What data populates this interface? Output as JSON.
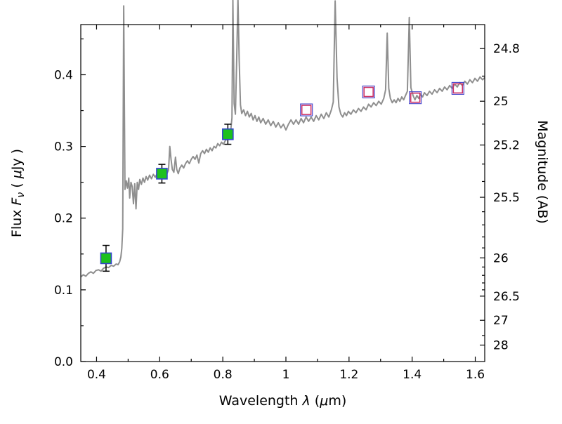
{
  "figure": {
    "description": "Spectral energy distribution: model spectrum with observed and model photometry",
    "background": "#ffffff"
  },
  "chart_data": {
    "type": "line",
    "title": "",
    "xlabel_parts": [
      {
        "t": "Wavelength  ",
        "i": false
      },
      {
        "t": "λ",
        "i": true
      },
      {
        "t": "  (",
        "i": false
      },
      {
        "t": "μ",
        "i": true
      },
      {
        "t": "m)",
        "i": false
      }
    ],
    "ylabel_left_parts": [
      {
        "t": "Flux  ",
        "i": false
      },
      {
        "t": "F",
        "i": true
      },
      {
        "t": "ν",
        "i": true,
        "sub": true
      },
      {
        "t": "  ( ",
        "i": false
      },
      {
        "t": "μ",
        "i": true
      },
      {
        "t": "Jy )",
        "i": false
      }
    ],
    "ylabel_right": "Magnitude (AB)",
    "xlim": [
      0.35,
      1.63
    ],
    "ylim": [
      0.0,
      0.47
    ],
    "grid": false,
    "x_major_ticks": [
      {
        "v": 0.4,
        "label": "0.4"
      },
      {
        "v": 0.6,
        "label": "0.6"
      },
      {
        "v": 0.8,
        "label": "0.8"
      },
      {
        "v": 1.0,
        "label": "1"
      },
      {
        "v": 1.2,
        "label": "1.2"
      },
      {
        "v": 1.4,
        "label": "1.4"
      },
      {
        "v": 1.6,
        "label": "1.6"
      }
    ],
    "x_minor_ticks": [
      0.5,
      0.7,
      0.9,
      1.1,
      1.3,
      1.5
    ],
    "y_major_ticks": [
      {
        "v": 0.0,
        "label": "0.0"
      },
      {
        "v": 0.1,
        "label": "0.1"
      },
      {
        "v": 0.2,
        "label": "0.2"
      },
      {
        "v": 0.3,
        "label": "0.3"
      },
      {
        "v": 0.4,
        "label": "0.4"
      }
    ],
    "y_minor_ticks": [
      0.05,
      0.15,
      0.25,
      0.35,
      0.45
    ],
    "right_axis": {
      "zero_point": 23.9,
      "major_ticks": [
        {
          "m": 24.8,
          "label": "24.8"
        },
        {
          "m": 25.0,
          "label": "25"
        },
        {
          "m": 25.2,
          "label": "25.2"
        },
        {
          "m": 25.5,
          "label": "25.5"
        },
        {
          "m": 26.0,
          "label": "26"
        },
        {
          "m": 26.5,
          "label": "26.5"
        },
        {
          "m": 27.0,
          "label": "27"
        },
        {
          "m": 28.0,
          "label": "28"
        }
      ],
      "minor_ticks": [
        24.9,
        25.1,
        25.3,
        25.4,
        25.6,
        25.7,
        25.8,
        25.9,
        26.1,
        26.2,
        26.3,
        26.4,
        27.5
      ]
    },
    "colors": {
      "spectrum": "#8f8f8f",
      "observed_fill": "#1dc11d",
      "observed_edge": "#3344cc",
      "model_point_inner": "#cc3366",
      "model_point_outer": "#4444cc",
      "errorbar": "#000000",
      "frame": "#000000"
    },
    "series": [
      {
        "name": "model-spectrum",
        "kind": "line",
        "linewidth": 2,
        "xy": [
          [
            0.35,
            0.118
          ],
          [
            0.358,
            0.121
          ],
          [
            0.366,
            0.119
          ],
          [
            0.374,
            0.123
          ],
          [
            0.382,
            0.125
          ],
          [
            0.39,
            0.123
          ],
          [
            0.398,
            0.127
          ],
          [
            0.406,
            0.128
          ],
          [
            0.414,
            0.126
          ],
          [
            0.422,
            0.13
          ],
          [
            0.43,
            0.132
          ],
          [
            0.438,
            0.131
          ],
          [
            0.446,
            0.134
          ],
          [
            0.454,
            0.133
          ],
          [
            0.462,
            0.136
          ],
          [
            0.468,
            0.135
          ],
          [
            0.473,
            0.139
          ],
          [
            0.477,
            0.146
          ],
          [
            0.48,
            0.158
          ],
          [
            0.483,
            0.185
          ],
          [
            0.486,
            0.496
          ],
          [
            0.49,
            0.24
          ],
          [
            0.494,
            0.252
          ],
          [
            0.498,
            0.242
          ],
          [
            0.502,
            0.256
          ],
          [
            0.505,
            0.228
          ],
          [
            0.509,
            0.25
          ],
          [
            0.513,
            0.244
          ],
          [
            0.517,
            0.22
          ],
          [
            0.521,
            0.248
          ],
          [
            0.525,
            0.213
          ],
          [
            0.529,
            0.25
          ],
          [
            0.533,
            0.24
          ],
          [
            0.537,
            0.254
          ],
          [
            0.542,
            0.247
          ],
          [
            0.547,
            0.256
          ],
          [
            0.552,
            0.25
          ],
          [
            0.557,
            0.258
          ],
          [
            0.562,
            0.253
          ],
          [
            0.568,
            0.26
          ],
          [
            0.574,
            0.255
          ],
          [
            0.58,
            0.261
          ],
          [
            0.586,
            0.257
          ],
          [
            0.592,
            0.262
          ],
          [
            0.598,
            0.259
          ],
          [
            0.604,
            0.263
          ],
          [
            0.61,
            0.26
          ],
          [
            0.616,
            0.264
          ],
          [
            0.622,
            0.261
          ],
          [
            0.628,
            0.267
          ],
          [
            0.632,
            0.3
          ],
          [
            0.636,
            0.282
          ],
          [
            0.64,
            0.268
          ],
          [
            0.645,
            0.264
          ],
          [
            0.65,
            0.285
          ],
          [
            0.654,
            0.268
          ],
          [
            0.659,
            0.262
          ],
          [
            0.664,
            0.27
          ],
          [
            0.67,
            0.274
          ],
          [
            0.676,
            0.27
          ],
          [
            0.682,
            0.276
          ],
          [
            0.688,
            0.28
          ],
          [
            0.694,
            0.276
          ],
          [
            0.7,
            0.282
          ],
          [
            0.706,
            0.286
          ],
          [
            0.712,
            0.282
          ],
          [
            0.718,
            0.288
          ],
          [
            0.724,
            0.277
          ],
          [
            0.73,
            0.29
          ],
          [
            0.736,
            0.294
          ],
          [
            0.742,
            0.29
          ],
          [
            0.748,
            0.296
          ],
          [
            0.754,
            0.292
          ],
          [
            0.76,
            0.298
          ],
          [
            0.766,
            0.294
          ],
          [
            0.772,
            0.3
          ],
          [
            0.778,
            0.298
          ],
          [
            0.784,
            0.304
          ],
          [
            0.79,
            0.301
          ],
          [
            0.796,
            0.306
          ],
          [
            0.802,
            0.303
          ],
          [
            0.808,
            0.308
          ],
          [
            0.814,
            0.311
          ],
          [
            0.82,
            0.315
          ],
          [
            0.825,
            0.322
          ],
          [
            0.829,
            0.34
          ],
          [
            0.832,
            0.505
          ],
          [
            0.836,
            0.36
          ],
          [
            0.84,
            0.345
          ],
          [
            0.844,
            0.42
          ],
          [
            0.848,
            0.508
          ],
          [
            0.852,
            0.42
          ],
          [
            0.856,
            0.358
          ],
          [
            0.86,
            0.346
          ],
          [
            0.866,
            0.351
          ],
          [
            0.872,
            0.343
          ],
          [
            0.878,
            0.349
          ],
          [
            0.884,
            0.341
          ],
          [
            0.89,
            0.346
          ],
          [
            0.896,
            0.337
          ],
          [
            0.902,
            0.343
          ],
          [
            0.908,
            0.335
          ],
          [
            0.914,
            0.341
          ],
          [
            0.92,
            0.333
          ],
          [
            0.928,
            0.339
          ],
          [
            0.936,
            0.331
          ],
          [
            0.944,
            0.337
          ],
          [
            0.952,
            0.329
          ],
          [
            0.96,
            0.335
          ],
          [
            0.968,
            0.327
          ],
          [
            0.976,
            0.333
          ],
          [
            0.984,
            0.326
          ],
          [
            0.992,
            0.331
          ],
          [
            1.0,
            0.323
          ],
          [
            1.008,
            0.331
          ],
          [
            1.016,
            0.337
          ],
          [
            1.024,
            0.331
          ],
          [
            1.032,
            0.337
          ],
          [
            1.04,
            0.331
          ],
          [
            1.048,
            0.339
          ],
          [
            1.056,
            0.333
          ],
          [
            1.064,
            0.341
          ],
          [
            1.072,
            0.335
          ],
          [
            1.08,
            0.341
          ],
          [
            1.088,
            0.335
          ],
          [
            1.096,
            0.343
          ],
          [
            1.104,
            0.337
          ],
          [
            1.112,
            0.345
          ],
          [
            1.12,
            0.339
          ],
          [
            1.128,
            0.347
          ],
          [
            1.136,
            0.341
          ],
          [
            1.144,
            0.351
          ],
          [
            1.15,
            0.362
          ],
          [
            1.156,
            0.503
          ],
          [
            1.162,
            0.395
          ],
          [
            1.168,
            0.355
          ],
          [
            1.174,
            0.345
          ],
          [
            1.18,
            0.341
          ],
          [
            1.186,
            0.347
          ],
          [
            1.192,
            0.343
          ],
          [
            1.198,
            0.349
          ],
          [
            1.206,
            0.345
          ],
          [
            1.214,
            0.351
          ],
          [
            1.222,
            0.347
          ],
          [
            1.23,
            0.353
          ],
          [
            1.238,
            0.349
          ],
          [
            1.246,
            0.355
          ],
          [
            1.254,
            0.351
          ],
          [
            1.262,
            0.359
          ],
          [
            1.27,
            0.355
          ],
          [
            1.278,
            0.361
          ],
          [
            1.286,
            0.357
          ],
          [
            1.294,
            0.363
          ],
          [
            1.302,
            0.359
          ],
          [
            1.31,
            0.367
          ],
          [
            1.316,
            0.379
          ],
          [
            1.321,
            0.458
          ],
          [
            1.326,
            0.381
          ],
          [
            1.331,
            0.367
          ],
          [
            1.337,
            0.361
          ],
          [
            1.343,
            0.365
          ],
          [
            1.349,
            0.361
          ],
          [
            1.355,
            0.367
          ],
          [
            1.361,
            0.363
          ],
          [
            1.367,
            0.369
          ],
          [
            1.373,
            0.365
          ],
          [
            1.379,
            0.371
          ],
          [
            1.385,
            0.377
          ],
          [
            1.391,
            0.48
          ],
          [
            1.396,
            0.382
          ],
          [
            1.403,
            0.371
          ],
          [
            1.409,
            0.365
          ],
          [
            1.415,
            0.371
          ],
          [
            1.421,
            0.367
          ],
          [
            1.427,
            0.373
          ],
          [
            1.433,
            0.369
          ],
          [
            1.439,
            0.375
          ],
          [
            1.447,
            0.371
          ],
          [
            1.455,
            0.377
          ],
          [
            1.463,
            0.373
          ],
          [
            1.471,
            0.379
          ],
          [
            1.479,
            0.375
          ],
          [
            1.487,
            0.381
          ],
          [
            1.495,
            0.377
          ],
          [
            1.503,
            0.383
          ],
          [
            1.511,
            0.379
          ],
          [
            1.519,
            0.385
          ],
          [
            1.527,
            0.381
          ],
          [
            1.535,
            0.387
          ],
          [
            1.543,
            0.383
          ],
          [
            1.551,
            0.389
          ],
          [
            1.559,
            0.385
          ],
          [
            1.567,
            0.391
          ],
          [
            1.575,
            0.387
          ],
          [
            1.583,
            0.393
          ],
          [
            1.591,
            0.389
          ],
          [
            1.599,
            0.395
          ],
          [
            1.607,
            0.391
          ],
          [
            1.615,
            0.397
          ],
          [
            1.623,
            0.393
          ],
          [
            1.63,
            0.396
          ]
        ]
      },
      {
        "name": "observed-photometry",
        "kind": "scatter",
        "marker": "square-filled",
        "points": [
          {
            "x": 0.43,
            "y": 0.144,
            "yerr": 0.018
          },
          {
            "x": 0.607,
            "y": 0.262,
            "yerr": 0.013
          },
          {
            "x": 0.816,
            "y": 0.317,
            "yerr": 0.014
          }
        ]
      },
      {
        "name": "model-photometry",
        "kind": "scatter",
        "marker": "square-open",
        "points": [
          {
            "x": 1.065,
            "y": 0.351
          },
          {
            "x": 1.262,
            "y": 0.376
          },
          {
            "x": 1.41,
            "y": 0.368
          },
          {
            "x": 1.545,
            "y": 0.381
          }
        ]
      }
    ]
  }
}
